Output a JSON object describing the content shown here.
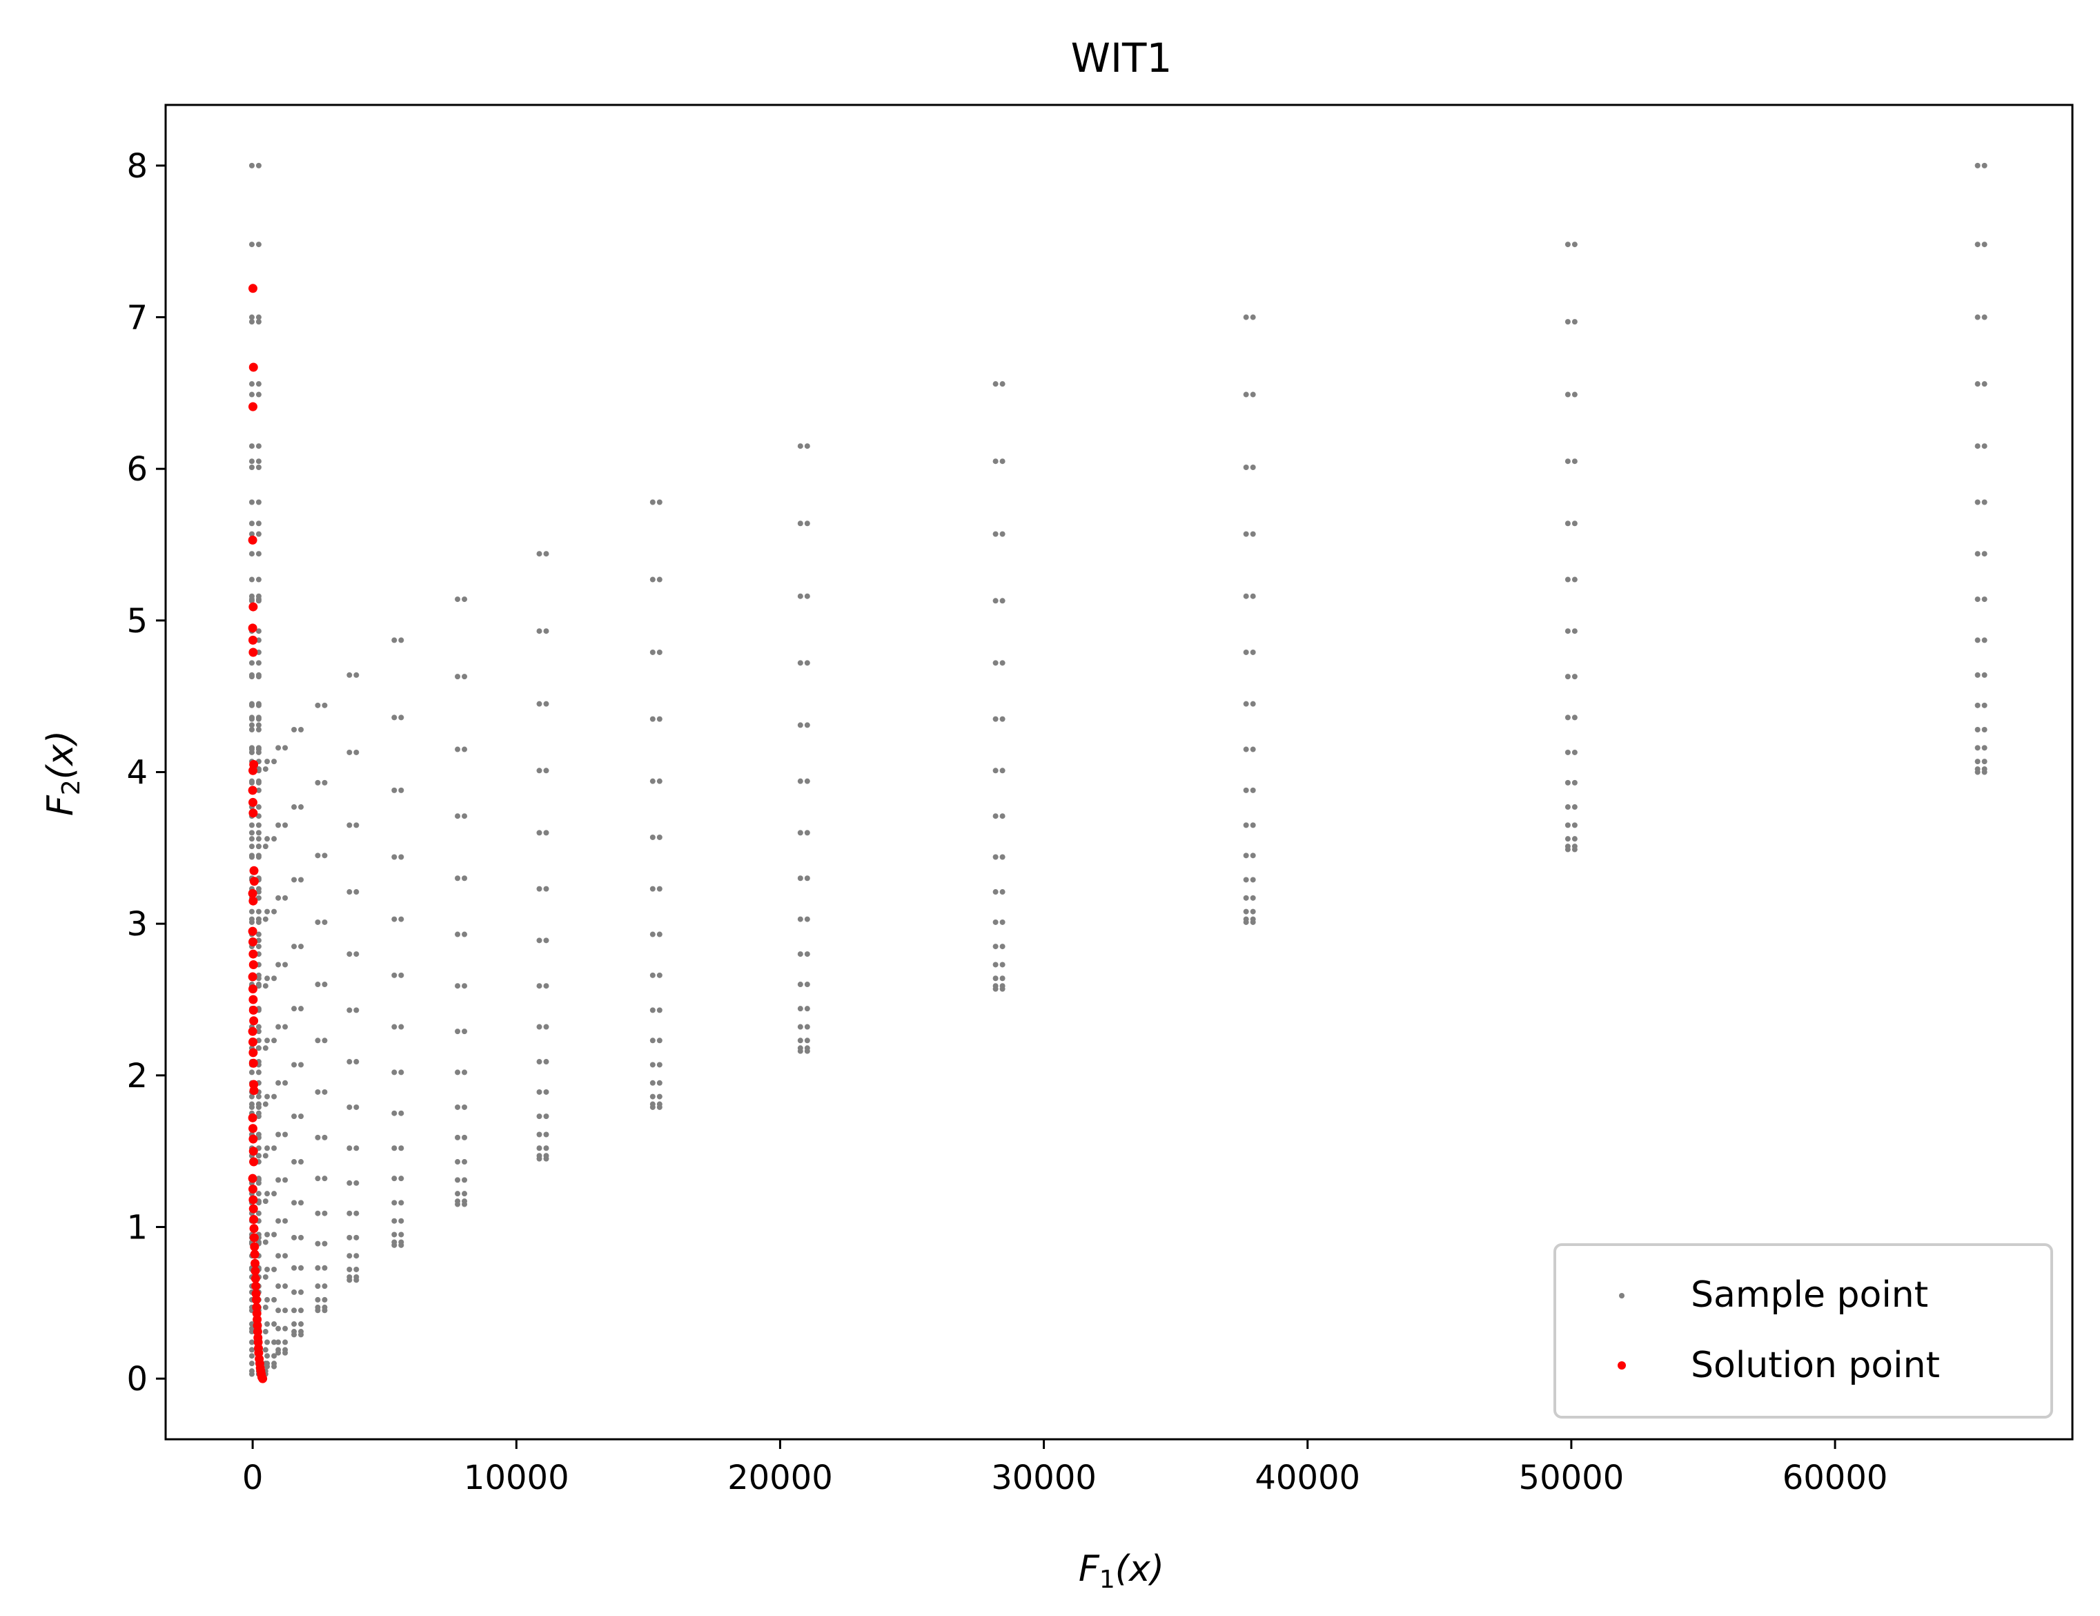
{
  "chart_data": {
    "type": "scatter",
    "title": "WIT1",
    "xlabel": "F1(x)",
    "ylabel": "F2(x)",
    "xlim": [
      -3300,
      69000
    ],
    "ylim": [
      -0.4,
      8.4
    ],
    "xticks": [
      0,
      10000,
      20000,
      30000,
      40000,
      50000,
      60000
    ],
    "xtick_labels": [
      "0",
      "10000",
      "20000",
      "30000",
      "40000",
      "50000",
      "60000"
    ],
    "yticks": [
      0,
      1,
      2,
      3,
      4,
      5,
      6,
      7,
      8
    ],
    "ytick_labels": [
      "0",
      "1",
      "2",
      "3",
      "4",
      "5",
      "6",
      "7",
      "8"
    ],
    "grid": false,
    "legend_position": "lower-right",
    "colors": {
      "sample": "#808080",
      "solution": "#ff0000"
    },
    "series": [
      {
        "name": "Sample point",
        "columns": [
          {
            "x": 65536,
            "y": [
              8.0,
              7.48,
              7.0,
              6.56,
              6.15,
              5.78,
              5.44,
              5.14,
              4.87,
              4.64,
              4.44,
              4.28,
              4.16,
              4.07,
              4.02,
              4.0
            ]
          },
          {
            "x": 50000,
            "y": [
              7.48,
              6.97,
              6.49,
              6.05,
              5.64,
              5.27,
              4.93,
              4.63,
              4.36,
              4.13,
              3.93,
              3.77,
              3.65,
              3.56,
              3.51,
              3.49
            ]
          },
          {
            "x": 37800,
            "y": [
              7.0,
              6.49,
              6.01,
              5.57,
              5.16,
              4.79,
              4.45,
              4.15,
              3.88,
              3.65,
              3.45,
              3.29,
              3.17,
              3.08,
              3.03,
              3.01
            ]
          },
          {
            "x": 28300,
            "y": [
              6.56,
              6.05,
              5.57,
              5.13,
              4.72,
              4.35,
              4.01,
              3.71,
              3.44,
              3.21,
              3.01,
              2.85,
              2.73,
              2.64,
              2.59,
              2.57
            ]
          },
          {
            "x": 20900,
            "y": [
              6.15,
              5.64,
              5.16,
              4.72,
              4.31,
              3.94,
              3.6,
              3.3,
              3.03,
              2.8,
              2.6,
              2.44,
              2.32,
              2.23,
              2.18,
              2.16
            ]
          },
          {
            "x": 15300,
            "y": [
              5.78,
              5.27,
              4.79,
              4.35,
              3.94,
              3.57,
              3.23,
              2.93,
              2.66,
              2.43,
              2.23,
              2.07,
              1.95,
              1.86,
              1.81,
              1.79
            ]
          },
          {
            "x": 11000,
            "y": [
              5.44,
              4.93,
              4.45,
              4.01,
              3.6,
              3.23,
              2.89,
              2.59,
              2.32,
              2.09,
              1.89,
              1.73,
              1.61,
              1.52,
              1.47,
              1.45
            ]
          },
          {
            "x": 7900,
            "y": [
              5.14,
              4.63,
              4.15,
              3.71,
              3.3,
              2.93,
              2.59,
              2.29,
              2.02,
              1.79,
              1.59,
              1.43,
              1.31,
              1.22,
              1.17,
              1.15
            ]
          },
          {
            "x": 5500,
            "y": [
              4.87,
              4.36,
              3.88,
              3.44,
              3.03,
              2.66,
              2.32,
              2.02,
              1.75,
              1.52,
              1.32,
              1.16,
              1.04,
              0.95,
              0.9,
              0.88
            ]
          },
          {
            "x": 3800,
            "y": [
              4.64,
              4.13,
              3.65,
              3.21,
              2.8,
              2.43,
              2.09,
              1.79,
              1.52,
              1.29,
              1.09,
              0.93,
              0.81,
              0.72,
              0.67,
              0.65
            ]
          },
          {
            "x": 2600,
            "y": [
              4.44,
              3.93,
              3.45,
              3.01,
              2.6,
              2.23,
              1.89,
              1.59,
              1.32,
              1.09,
              0.89,
              0.73,
              0.61,
              0.52,
              0.47,
              0.45
            ]
          },
          {
            "x": 1700,
            "y": [
              4.28,
              3.77,
              3.29,
              2.85,
              2.44,
              2.07,
              1.73,
              1.43,
              1.16,
              0.93,
              0.73,
              0.57,
              0.45,
              0.36,
              0.31,
              0.29
            ]
          },
          {
            "x": 1100,
            "y": [
              4.16,
              3.65,
              3.17,
              2.73,
              2.32,
              1.95,
              1.61,
              1.31,
              1.04,
              0.81,
              0.61,
              0.45,
              0.33,
              0.24,
              0.19,
              0.17
            ]
          },
          {
            "x": 680,
            "y": [
              4.07,
              3.56,
              3.08,
              2.64,
              2.23,
              1.86,
              1.52,
              1.22,
              0.95,
              0.72,
              0.52,
              0.36,
              0.24,
              0.15,
              0.1,
              0.08
            ]
          },
          {
            "x": 360,
            "y": [
              4.02,
              3.51,
              3.03,
              2.59,
              2.18,
              1.81,
              1.47,
              1.17,
              0.9,
              0.67,
              0.47,
              0.31,
              0.19,
              0.1,
              0.05,
              0.03
            ]
          },
          {
            "x": 100,
            "y": [
              8.0,
              7.48,
              7.0,
              6.97,
              6.56,
              6.49,
              6.15,
              6.05,
              6.01,
              5.78,
              5.64,
              5.57,
              5.44,
              5.27,
              5.16,
              5.14,
              5.13,
              4.93,
              4.87,
              4.79,
              4.72,
              4.64,
              4.63,
              4.45,
              4.44,
              4.36,
              4.35,
              4.31,
              4.28,
              4.16,
              4.15,
              4.13,
              4.07,
              4.02,
              4.01,
              3.94,
              3.93,
              3.88,
              3.77,
              3.71,
              3.65,
              3.6,
              3.56,
              3.51,
              3.45,
              3.44,
              3.3,
              3.29,
              3.23,
              3.21,
              3.17,
              3.08,
              3.03,
              3.01,
              2.93,
              2.89,
              2.85,
              2.8,
              2.73,
              2.66,
              2.64,
              2.6,
              2.59,
              2.44,
              2.43,
              2.32,
              2.29,
              2.23,
              2.18,
              2.09,
              2.07,
              2.02,
              1.95,
              1.89,
              1.86,
              1.81,
              1.79,
              1.75,
              1.73,
              1.61,
              1.59,
              1.52,
              1.47,
              1.43,
              1.32,
              1.31,
              1.29,
              1.22,
              1.17,
              1.16,
              1.09,
              1.04,
              0.95,
              0.93,
              0.9,
              0.89,
              0.81,
              0.73,
              0.72,
              0.67,
              0.61,
              0.57,
              0.52,
              0.47,
              0.45,
              0.36,
              0.33,
              0.31,
              0.24,
              0.19,
              0.15,
              0.1,
              0.05,
              0.03
            ]
          }
        ]
      },
      {
        "name": "Solution point",
        "points": [
          [
            10,
            7.19
          ],
          [
            30,
            6.67
          ],
          [
            10,
            6.41
          ],
          [
            0,
            5.53
          ],
          [
            20,
            5.09
          ],
          [
            0,
            4.95
          ],
          [
            10,
            4.87
          ],
          [
            20,
            4.79
          ],
          [
            40,
            4.05
          ],
          [
            10,
            4.01
          ],
          [
            0,
            3.88
          ],
          [
            10,
            3.8
          ],
          [
            20,
            3.73
          ],
          [
            50,
            3.35
          ],
          [
            60,
            3.28
          ],
          [
            0,
            3.2
          ],
          [
            20,
            3.15
          ],
          [
            0,
            2.95
          ],
          [
            10,
            2.88
          ],
          [
            20,
            2.8
          ],
          [
            30,
            2.73
          ],
          [
            0,
            2.65
          ],
          [
            10,
            2.57
          ],
          [
            20,
            2.5
          ],
          [
            30,
            2.43
          ],
          [
            40,
            2.36
          ],
          [
            0,
            2.29
          ],
          [
            10,
            2.22
          ],
          [
            20,
            2.15
          ],
          [
            30,
            2.08
          ],
          [
            40,
            1.94
          ],
          [
            50,
            1.9
          ],
          [
            0,
            1.72
          ],
          [
            10,
            1.65
          ],
          [
            20,
            1.58
          ],
          [
            30,
            1.5
          ],
          [
            40,
            1.43
          ],
          [
            0,
            1.32
          ],
          [
            10,
            1.25
          ],
          [
            20,
            1.18
          ],
          [
            30,
            1.12
          ],
          [
            40,
            1.05
          ],
          [
            50,
            0.99
          ],
          [
            60,
            0.93
          ],
          [
            70,
            0.87
          ],
          [
            80,
            0.82
          ],
          [
            90,
            0.76
          ],
          [
            100,
            0.71
          ],
          [
            110,
            0.66
          ],
          [
            120,
            0.61
          ],
          [
            130,
            0.56
          ],
          [
            140,
            0.52
          ],
          [
            150,
            0.47
          ],
          [
            160,
            0.43
          ],
          [
            170,
            0.39
          ],
          [
            180,
            0.35
          ],
          [
            190,
            0.31
          ],
          [
            200,
            0.27
          ],
          [
            210,
            0.24
          ],
          [
            220,
            0.2
          ],
          [
            230,
            0.17
          ],
          [
            250,
            0.13
          ],
          [
            270,
            0.1
          ],
          [
            290,
            0.07
          ],
          [
            310,
            0.05
          ],
          [
            330,
            0.03
          ],
          [
            350,
            0.01
          ],
          [
            380,
            0.0
          ]
        ]
      }
    ]
  }
}
